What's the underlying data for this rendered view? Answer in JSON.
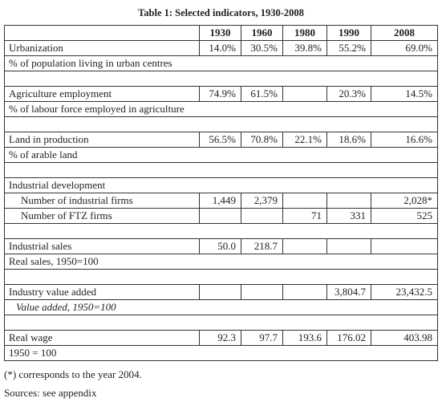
{
  "title": "Table 1: Selected indicators, 1930-2008",
  "table": {
    "header": [
      "1930",
      "1960",
      "1980",
      "1990",
      "2008"
    ],
    "sections": [
      {
        "label": "Urbanization",
        "values": [
          "14.0%",
          "30.5%",
          "39.8%",
          "55.2%",
          "69.0%"
        ],
        "unit": "% of population living in urban centres"
      },
      {
        "label": "Agriculture employment",
        "values": [
          "74.9%",
          "61.5%",
          null,
          "20.3%",
          "14.5%"
        ],
        "unit": "% of labour force employed in agriculture"
      },
      {
        "label": "Land in production",
        "values": [
          "56.5%",
          "70.8%",
          "22.1%",
          "18.6%",
          "16.6%"
        ],
        "unit": "% of arable land"
      },
      {
        "label": "Industrial development",
        "rows": [
          {
            "label": "Number of industrial firms",
            "values": [
              "1,449",
              "2,379",
              null,
              null,
              "2,028*"
            ]
          },
          {
            "label": "Number of FTZ firms",
            "values": [
              null,
              null,
              "71",
              "331",
              "525"
            ]
          }
        ]
      },
      {
        "label": "Industrial sales",
        "values": [
          "50.0",
          "218.7",
          null,
          null,
          null
        ],
        "unit": "Real sales, 1950=100"
      },
      {
        "label": "Industry value added",
        "values": [
          null,
          null,
          null,
          "3,804.7",
          "23,432.5"
        ],
        "unit": "Value added, 1950=100"
      },
      {
        "label": "Real wage",
        "values": [
          "92.3",
          "97.7",
          "193.6",
          "176.02",
          "403.98"
        ],
        "unit": "1950 = 100"
      }
    ]
  },
  "footnotes": [
    "(*) corresponds to the year 2004.",
    "Sources: see appendix"
  ]
}
